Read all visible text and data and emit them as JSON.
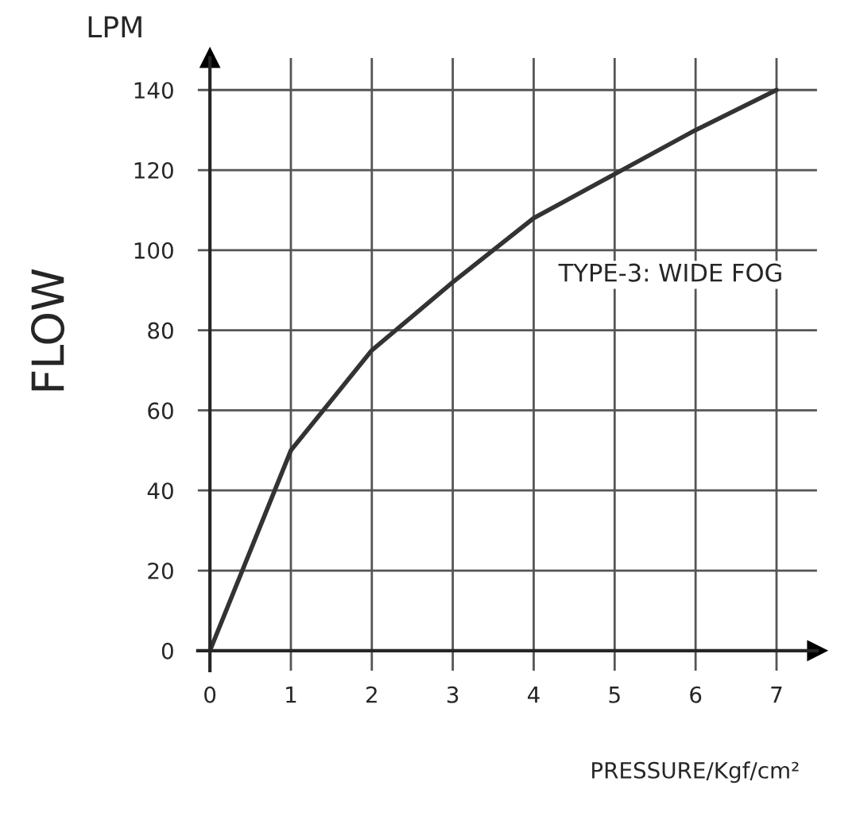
{
  "chart_data": {
    "type": "line",
    "ylabel": "FLOW",
    "xlabel": "PRESSURE/Kgf/cm²",
    "annotations": [
      "LPM",
      "TYPE-3: WIDE FOG"
    ],
    "x": [
      0,
      1,
      2,
      3,
      4,
      5,
      6,
      7
    ],
    "series": [
      {
        "color": "#333333",
        "values": [
          0,
          50,
          75,
          92,
          108,
          119,
          130,
          140
        ]
      }
    ],
    "xlim": [
      -0.15,
      7.5
    ],
    "ylim": [
      -5,
      148
    ],
    "xticks": [
      0,
      1,
      2,
      3,
      4,
      5,
      6,
      7
    ],
    "yticks": [
      0,
      20,
      40,
      60,
      80,
      100,
      120,
      140
    ],
    "grid": true,
    "legend": false,
    "marker": "none",
    "line_style": "solid"
  }
}
